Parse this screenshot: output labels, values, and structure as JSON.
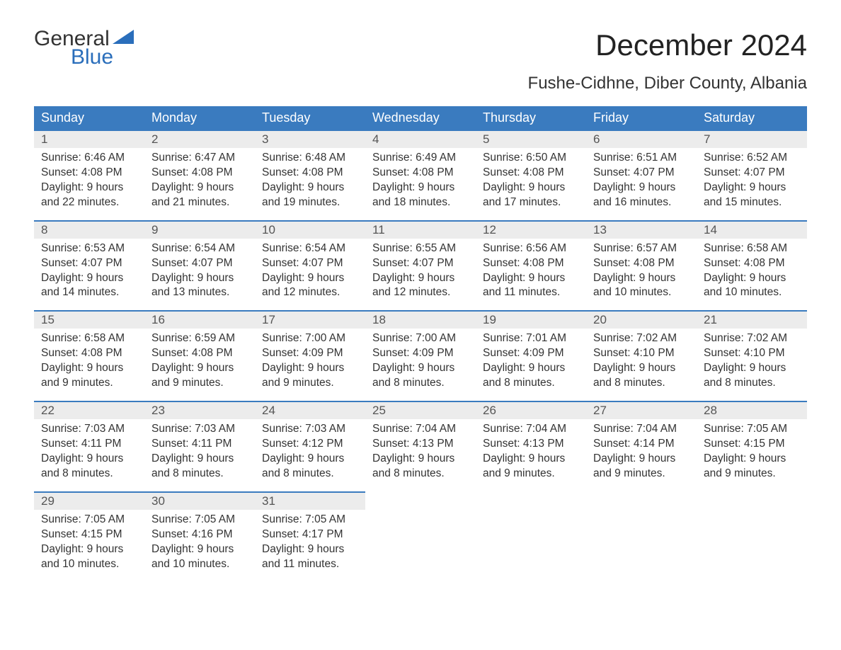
{
  "logo": {
    "word1": "General",
    "word2": "Blue",
    "accent_color": "#2a6ebb"
  },
  "title": "December 2024",
  "location": "Fushe-Cidhne, Diber County, Albania",
  "colors": {
    "header_bg": "#3a7bbf",
    "header_text": "#ffffff",
    "daybar_bg": "#ececec",
    "daybar_border": "#3a7bbf",
    "body_text": "#333333",
    "page_bg": "#ffffff"
  },
  "day_names": [
    "Sunday",
    "Monday",
    "Tuesday",
    "Wednesday",
    "Thursday",
    "Friday",
    "Saturday"
  ],
  "weeks": [
    [
      {
        "n": "1",
        "sr": "Sunrise: 6:46 AM",
        "ss": "Sunset: 4:08 PM",
        "d1": "Daylight: 9 hours",
        "d2": "and 22 minutes."
      },
      {
        "n": "2",
        "sr": "Sunrise: 6:47 AM",
        "ss": "Sunset: 4:08 PM",
        "d1": "Daylight: 9 hours",
        "d2": "and 21 minutes."
      },
      {
        "n": "3",
        "sr": "Sunrise: 6:48 AM",
        "ss": "Sunset: 4:08 PM",
        "d1": "Daylight: 9 hours",
        "d2": "and 19 minutes."
      },
      {
        "n": "4",
        "sr": "Sunrise: 6:49 AM",
        "ss": "Sunset: 4:08 PM",
        "d1": "Daylight: 9 hours",
        "d2": "and 18 minutes."
      },
      {
        "n": "5",
        "sr": "Sunrise: 6:50 AM",
        "ss": "Sunset: 4:08 PM",
        "d1": "Daylight: 9 hours",
        "d2": "and 17 minutes."
      },
      {
        "n": "6",
        "sr": "Sunrise: 6:51 AM",
        "ss": "Sunset: 4:07 PM",
        "d1": "Daylight: 9 hours",
        "d2": "and 16 minutes."
      },
      {
        "n": "7",
        "sr": "Sunrise: 6:52 AM",
        "ss": "Sunset: 4:07 PM",
        "d1": "Daylight: 9 hours",
        "d2": "and 15 minutes."
      }
    ],
    [
      {
        "n": "8",
        "sr": "Sunrise: 6:53 AM",
        "ss": "Sunset: 4:07 PM",
        "d1": "Daylight: 9 hours",
        "d2": "and 14 minutes."
      },
      {
        "n": "9",
        "sr": "Sunrise: 6:54 AM",
        "ss": "Sunset: 4:07 PM",
        "d1": "Daylight: 9 hours",
        "d2": "and 13 minutes."
      },
      {
        "n": "10",
        "sr": "Sunrise: 6:54 AM",
        "ss": "Sunset: 4:07 PM",
        "d1": "Daylight: 9 hours",
        "d2": "and 12 minutes."
      },
      {
        "n": "11",
        "sr": "Sunrise: 6:55 AM",
        "ss": "Sunset: 4:07 PM",
        "d1": "Daylight: 9 hours",
        "d2": "and 12 minutes."
      },
      {
        "n": "12",
        "sr": "Sunrise: 6:56 AM",
        "ss": "Sunset: 4:08 PM",
        "d1": "Daylight: 9 hours",
        "d2": "and 11 minutes."
      },
      {
        "n": "13",
        "sr": "Sunrise: 6:57 AM",
        "ss": "Sunset: 4:08 PM",
        "d1": "Daylight: 9 hours",
        "d2": "and 10 minutes."
      },
      {
        "n": "14",
        "sr": "Sunrise: 6:58 AM",
        "ss": "Sunset: 4:08 PM",
        "d1": "Daylight: 9 hours",
        "d2": "and 10 minutes."
      }
    ],
    [
      {
        "n": "15",
        "sr": "Sunrise: 6:58 AM",
        "ss": "Sunset: 4:08 PM",
        "d1": "Daylight: 9 hours",
        "d2": "and 9 minutes."
      },
      {
        "n": "16",
        "sr": "Sunrise: 6:59 AM",
        "ss": "Sunset: 4:08 PM",
        "d1": "Daylight: 9 hours",
        "d2": "and 9 minutes."
      },
      {
        "n": "17",
        "sr": "Sunrise: 7:00 AM",
        "ss": "Sunset: 4:09 PM",
        "d1": "Daylight: 9 hours",
        "d2": "and 9 minutes."
      },
      {
        "n": "18",
        "sr": "Sunrise: 7:00 AM",
        "ss": "Sunset: 4:09 PM",
        "d1": "Daylight: 9 hours",
        "d2": "and 8 minutes."
      },
      {
        "n": "19",
        "sr": "Sunrise: 7:01 AM",
        "ss": "Sunset: 4:09 PM",
        "d1": "Daylight: 9 hours",
        "d2": "and 8 minutes."
      },
      {
        "n": "20",
        "sr": "Sunrise: 7:02 AM",
        "ss": "Sunset: 4:10 PM",
        "d1": "Daylight: 9 hours",
        "d2": "and 8 minutes."
      },
      {
        "n": "21",
        "sr": "Sunrise: 7:02 AM",
        "ss": "Sunset: 4:10 PM",
        "d1": "Daylight: 9 hours",
        "d2": "and 8 minutes."
      }
    ],
    [
      {
        "n": "22",
        "sr": "Sunrise: 7:03 AM",
        "ss": "Sunset: 4:11 PM",
        "d1": "Daylight: 9 hours",
        "d2": "and 8 minutes."
      },
      {
        "n": "23",
        "sr": "Sunrise: 7:03 AM",
        "ss": "Sunset: 4:11 PM",
        "d1": "Daylight: 9 hours",
        "d2": "and 8 minutes."
      },
      {
        "n": "24",
        "sr": "Sunrise: 7:03 AM",
        "ss": "Sunset: 4:12 PM",
        "d1": "Daylight: 9 hours",
        "d2": "and 8 minutes."
      },
      {
        "n": "25",
        "sr": "Sunrise: 7:04 AM",
        "ss": "Sunset: 4:13 PM",
        "d1": "Daylight: 9 hours",
        "d2": "and 8 minutes."
      },
      {
        "n": "26",
        "sr": "Sunrise: 7:04 AM",
        "ss": "Sunset: 4:13 PM",
        "d1": "Daylight: 9 hours",
        "d2": "and 9 minutes."
      },
      {
        "n": "27",
        "sr": "Sunrise: 7:04 AM",
        "ss": "Sunset: 4:14 PM",
        "d1": "Daylight: 9 hours",
        "d2": "and 9 minutes."
      },
      {
        "n": "28",
        "sr": "Sunrise: 7:05 AM",
        "ss": "Sunset: 4:15 PM",
        "d1": "Daylight: 9 hours",
        "d2": "and 9 minutes."
      }
    ],
    [
      {
        "n": "29",
        "sr": "Sunrise: 7:05 AM",
        "ss": "Sunset: 4:15 PM",
        "d1": "Daylight: 9 hours",
        "d2": "and 10 minutes."
      },
      {
        "n": "30",
        "sr": "Sunrise: 7:05 AM",
        "ss": "Sunset: 4:16 PM",
        "d1": "Daylight: 9 hours",
        "d2": "and 10 minutes."
      },
      {
        "n": "31",
        "sr": "Sunrise: 7:05 AM",
        "ss": "Sunset: 4:17 PM",
        "d1": "Daylight: 9 hours",
        "d2": "and 11 minutes."
      },
      null,
      null,
      null,
      null
    ]
  ]
}
